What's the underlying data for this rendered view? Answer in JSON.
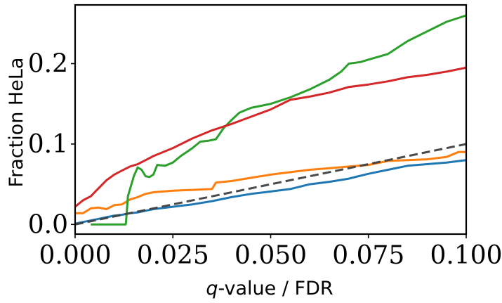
{
  "chart_data": {
    "type": "line",
    "title": "",
    "xlabel": "q-value / FDR",
    "xlabel_italic_part": "q",
    "xlabel_rest": "-value / FDR",
    "ylabel": "Fraction HeLa",
    "xlim": [
      0.0,
      0.1
    ],
    "ylim": [
      -0.012,
      0.273
    ],
    "xticks": [
      0.0,
      0.025,
      0.05,
      0.075,
      0.1
    ],
    "xtick_labels": [
      "0.000",
      "0.025",
      "0.050",
      "0.075",
      "0.100"
    ],
    "yticks": [
      0.0,
      0.1,
      0.2
    ],
    "ytick_labels": [
      "0.0",
      "0.1",
      "0.2"
    ],
    "grid": false,
    "legend": null,
    "reference_line": {
      "name": "y = x",
      "color": "#404040",
      "style": "dashed",
      "points": [
        [
          0.0,
          0.0
        ],
        [
          0.1,
          0.1
        ]
      ]
    },
    "series": [
      {
        "name": "blue",
        "color": "#1f77b4",
        "points": [
          [
            0.0,
            0.001
          ],
          [
            0.002,
            0.003
          ],
          [
            0.004,
            0.005
          ],
          [
            0.006,
            0.007
          ],
          [
            0.008,
            0.009
          ],
          [
            0.01,
            0.011
          ],
          [
            0.012,
            0.012
          ],
          [
            0.014,
            0.014
          ],
          [
            0.016,
            0.015
          ],
          [
            0.018,
            0.017
          ],
          [
            0.02,
            0.019
          ],
          [
            0.025,
            0.022
          ],
          [
            0.03,
            0.025
          ],
          [
            0.035,
            0.029
          ],
          [
            0.04,
            0.034
          ],
          [
            0.045,
            0.038
          ],
          [
            0.05,
            0.041
          ],
          [
            0.055,
            0.044
          ],
          [
            0.06,
            0.05
          ],
          [
            0.065,
            0.053
          ],
          [
            0.07,
            0.057
          ],
          [
            0.075,
            0.063
          ],
          [
            0.08,
            0.068
          ],
          [
            0.085,
            0.073
          ],
          [
            0.09,
            0.075
          ],
          [
            0.095,
            0.077
          ],
          [
            0.1,
            0.08
          ]
        ]
      },
      {
        "name": "orange",
        "color": "#ff7f0e",
        "points": [
          [
            0.0,
            0.014
          ],
          [
            0.002,
            0.014
          ],
          [
            0.004,
            0.02
          ],
          [
            0.006,
            0.021
          ],
          [
            0.008,
            0.019
          ],
          [
            0.01,
            0.024
          ],
          [
            0.012,
            0.025
          ],
          [
            0.014,
            0.031
          ],
          [
            0.016,
            0.034
          ],
          [
            0.018,
            0.038
          ],
          [
            0.02,
            0.04
          ],
          [
            0.025,
            0.042
          ],
          [
            0.03,
            0.043
          ],
          [
            0.035,
            0.044
          ],
          [
            0.036,
            0.052
          ],
          [
            0.04,
            0.054
          ],
          [
            0.045,
            0.058
          ],
          [
            0.05,
            0.062
          ],
          [
            0.055,
            0.065
          ],
          [
            0.06,
            0.068
          ],
          [
            0.065,
            0.07
          ],
          [
            0.07,
            0.072
          ],
          [
            0.075,
            0.074
          ],
          [
            0.08,
            0.079
          ],
          [
            0.085,
            0.08
          ],
          [
            0.09,
            0.081
          ],
          [
            0.095,
            0.084
          ],
          [
            0.098,
            0.09
          ],
          [
            0.1,
            0.09
          ]
        ]
      },
      {
        "name": "green",
        "color": "#2ca02c",
        "points": [
          [
            0.004,
            0.0
          ],
          [
            0.0129,
            0.0
          ],
          [
            0.013,
            0.002
          ],
          [
            0.0135,
            0.035
          ],
          [
            0.015,
            0.06
          ],
          [
            0.016,
            0.071
          ],
          [
            0.017,
            0.068
          ],
          [
            0.018,
            0.06
          ],
          [
            0.019,
            0.059
          ],
          [
            0.02,
            0.062
          ],
          [
            0.021,
            0.074
          ],
          [
            0.023,
            0.073
          ],
          [
            0.025,
            0.077
          ],
          [
            0.027,
            0.085
          ],
          [
            0.03,
            0.095
          ],
          [
            0.032,
            0.103
          ],
          [
            0.034,
            0.104
          ],
          [
            0.036,
            0.106
          ],
          [
            0.038,
            0.12
          ],
          [
            0.04,
            0.13
          ],
          [
            0.042,
            0.139
          ],
          [
            0.045,
            0.145
          ],
          [
            0.05,
            0.15
          ],
          [
            0.055,
            0.158
          ],
          [
            0.06,
            0.168
          ],
          [
            0.065,
            0.18
          ],
          [
            0.068,
            0.19
          ],
          [
            0.07,
            0.2
          ],
          [
            0.073,
            0.202
          ],
          [
            0.075,
            0.205
          ],
          [
            0.08,
            0.212
          ],
          [
            0.085,
            0.228
          ],
          [
            0.09,
            0.24
          ],
          [
            0.095,
            0.252
          ],
          [
            0.1,
            0.26
          ]
        ]
      },
      {
        "name": "red",
        "color": "#d62728",
        "points": [
          [
            0.0,
            0.022
          ],
          [
            0.002,
            0.03
          ],
          [
            0.004,
            0.035
          ],
          [
            0.006,
            0.045
          ],
          [
            0.008,
            0.055
          ],
          [
            0.01,
            0.062
          ],
          [
            0.012,
            0.067
          ],
          [
            0.014,
            0.072
          ],
          [
            0.016,
            0.075
          ],
          [
            0.018,
            0.08
          ],
          [
            0.02,
            0.085
          ],
          [
            0.025,
            0.095
          ],
          [
            0.03,
            0.107
          ],
          [
            0.035,
            0.117
          ],
          [
            0.04,
            0.125
          ],
          [
            0.045,
            0.134
          ],
          [
            0.05,
            0.143
          ],
          [
            0.055,
            0.155
          ],
          [
            0.06,
            0.159
          ],
          [
            0.065,
            0.164
          ],
          [
            0.07,
            0.171
          ],
          [
            0.075,
            0.174
          ],
          [
            0.08,
            0.178
          ],
          [
            0.085,
            0.183
          ],
          [
            0.09,
            0.186
          ],
          [
            0.095,
            0.19
          ],
          [
            0.1,
            0.195
          ]
        ]
      }
    ]
  }
}
